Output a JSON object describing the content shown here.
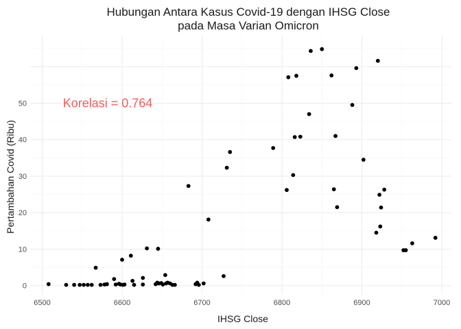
{
  "chart_data": {
    "type": "scatter",
    "title": [
      "Hubungan Antara Kasus Covid-19 dengan IHSG Close",
      "pada Masa Varian Omicron"
    ],
    "xlabel": "IHSG Close",
    "ylabel": "Pertambahan Covid (Ribu)",
    "xlim": [
      6485,
      7012
    ],
    "ylim": [
      -2.5,
      68.5
    ],
    "xticks": [
      "6500",
      "6600",
      "6700",
      "6800",
      "6900",
      "7000"
    ],
    "xtick_values": [
      6500,
      6600,
      6700,
      6800,
      6900,
      7000
    ],
    "yticks": [
      "0",
      "10",
      "20",
      "30",
      "40",
      "50"
    ],
    "ytick_values": [
      0,
      10,
      20,
      30,
      40,
      50
    ],
    "grid": true,
    "legend": "none",
    "point_color": "#000000",
    "annotation": {
      "text": "Korelasi =  0.764",
      "x": 6582,
      "y": 50,
      "color": "#f25f5c"
    },
    "points": [
      {
        "x": 6508,
        "y": 0.4
      },
      {
        "x": 6530,
        "y": 0.2
      },
      {
        "x": 6540,
        "y": 0.2
      },
      {
        "x": 6547,
        "y": 0.2
      },
      {
        "x": 6552,
        "y": 0.2
      },
      {
        "x": 6557,
        "y": 0.2
      },
      {
        "x": 6562,
        "y": 0.2
      },
      {
        "x": 6567,
        "y": 4.9
      },
      {
        "x": 6573,
        "y": 0.2
      },
      {
        "x": 6578,
        "y": 0.3
      },
      {
        "x": 6581,
        "y": 0.4
      },
      {
        "x": 6590,
        "y": 1.8
      },
      {
        "x": 6592,
        "y": 0.3
      },
      {
        "x": 6596,
        "y": 0.5
      },
      {
        "x": 6598,
        "y": 0.3
      },
      {
        "x": 6600,
        "y": 7.1
      },
      {
        "x": 6601,
        "y": 0.2
      },
      {
        "x": 6603,
        "y": 0.3
      },
      {
        "x": 6611,
        "y": 8.2
      },
      {
        "x": 6613,
        "y": 1.3
      },
      {
        "x": 6615,
        "y": 0.2
      },
      {
        "x": 6626,
        "y": 0.3
      },
      {
        "x": 6626,
        "y": 2.1
      },
      {
        "x": 6631,
        "y": 10.2
      },
      {
        "x": 6642,
        "y": 0.4
      },
      {
        "x": 6644,
        "y": 0.8
      },
      {
        "x": 6645,
        "y": 10.1
      },
      {
        "x": 6646,
        "y": 0.6
      },
      {
        "x": 6649,
        "y": 0.7
      },
      {
        "x": 6651,
        "y": 0.3
      },
      {
        "x": 6654,
        "y": 2.9
      },
      {
        "x": 6655,
        "y": 0.6
      },
      {
        "x": 6657,
        "y": 0.8
      },
      {
        "x": 6660,
        "y": 0.6
      },
      {
        "x": 6663,
        "y": 0.2
      },
      {
        "x": 6666,
        "y": 0.2
      },
      {
        "x": 6683,
        "y": 27.3
      },
      {
        "x": 6692,
        "y": 0.4
      },
      {
        "x": 6694,
        "y": 0.8
      },
      {
        "x": 6696,
        "y": 0.2
      },
      {
        "x": 6702,
        "y": 0.6
      },
      {
        "x": 6708,
        "y": 18.1
      },
      {
        "x": 6727,
        "y": 2.6
      },
      {
        "x": 6731,
        "y": 32.3
      },
      {
        "x": 6735,
        "y": 36.6
      },
      {
        "x": 6789,
        "y": 37.7
      },
      {
        "x": 6806,
        "y": 26.2
      },
      {
        "x": 6808,
        "y": 57.1
      },
      {
        "x": 6814,
        "y": 30.3
      },
      {
        "x": 6816,
        "y": 40.7
      },
      {
        "x": 6818,
        "y": 57.5
      },
      {
        "x": 6823,
        "y": 40.8
      },
      {
        "x": 6834,
        "y": 47.0
      },
      {
        "x": 6836,
        "y": 64.3
      },
      {
        "x": 6850,
        "y": 64.8
      },
      {
        "x": 6862,
        "y": 57.6
      },
      {
        "x": 6865,
        "y": 26.4
      },
      {
        "x": 6867,
        "y": 41.0
      },
      {
        "x": 6869,
        "y": 21.5
      },
      {
        "x": 6888,
        "y": 49.5
      },
      {
        "x": 6893,
        "y": 59.6
      },
      {
        "x": 6902,
        "y": 34.5
      },
      {
        "x": 6918,
        "y": 14.5
      },
      {
        "x": 6920,
        "y": 61.6
      },
      {
        "x": 6922,
        "y": 24.9
      },
      {
        "x": 6923,
        "y": 16.2
      },
      {
        "x": 6924,
        "y": 21.4
      },
      {
        "x": 6928,
        "y": 26.3
      },
      {
        "x": 6952,
        "y": 9.7
      },
      {
        "x": 6955,
        "y": 9.7
      },
      {
        "x": 6963,
        "y": 11.6
      },
      {
        "x": 6992,
        "y": 13.1
      }
    ]
  }
}
